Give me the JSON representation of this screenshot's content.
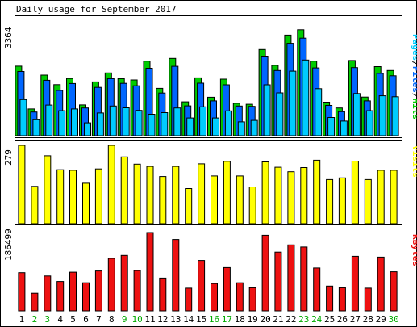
{
  "chart_data": {
    "type": "bar",
    "title": "Daily usage for September 2017",
    "categories": [
      "1",
      "2",
      "3",
      "4",
      "5",
      "6",
      "7",
      "8",
      "9",
      "10",
      "11",
      "12",
      "13",
      "14",
      "15",
      "16",
      "17",
      "18",
      "19",
      "20",
      "21",
      "22",
      "23",
      "24",
      "25",
      "26",
      "27",
      "28",
      "29",
      "30"
    ],
    "weekend_days": [
      "2",
      "3",
      "9",
      "10",
      "16",
      "17",
      "23",
      "24",
      "30"
    ],
    "panels": [
      {
        "id": "usage",
        "ymax_label": "3364",
        "ylim": [
          0,
          3364
        ],
        "legend": [
          "Pages",
          "/",
          "Files",
          "/",
          "Hits"
        ],
        "series": [
          {
            "name": "Hits",
            "color": "#00cc00",
            "values": [
              2145,
              825,
              1870,
              1575,
              1765,
              950,
              1660,
              1935,
              1760,
              1720,
              2300,
              1460,
              2385,
              1045,
              1785,
              1185,
              1745,
              1000,
              970,
              2660,
              2170,
              3105,
              3270,
              2300,
              1035,
              855,
              2320,
              1190,
              2130,
              2010
            ]
          },
          {
            "name": "Files",
            "color": "#0066ff",
            "values": [
              1980,
              730,
              1710,
              1395,
              1610,
              855,
              1490,
              1760,
              1615,
              1540,
              2080,
              1315,
              2140,
              920,
              1620,
              1075,
              1570,
              915,
              905,
              2455,
              2010,
              2850,
              3010,
              2090,
              935,
              740,
              2100,
              1075,
              1920,
              1850
            ]
          },
          {
            "name": "Pages",
            "color": "#00ccff",
            "values": [
              1115,
              490,
              945,
              770,
              825,
              395,
              700,
              915,
              860,
              780,
              660,
              710,
              855,
              545,
              890,
              545,
              765,
              425,
              470,
              1570,
              1320,
              1990,
              2335,
              1450,
              560,
              450,
              1300,
              770,
              1230,
              1200
            ]
          }
        ]
      },
      {
        "id": "visits",
        "ymax_label": "279",
        "ylim": [
          0,
          279
        ],
        "legend": [
          "Visits"
        ],
        "series": [
          {
            "name": "Visits",
            "color": "#ffff00",
            "values": [
              279,
              133,
              242,
              192,
              190,
              144,
              195,
              279,
              238,
              212,
              204,
              168,
              204,
              125,
              213,
              170,
              222,
              170,
              131,
              220,
              201,
              185,
              200,
              226,
              157,
              163,
              223,
              157,
              190,
              190
            ]
          }
        ]
      },
      {
        "id": "kbytes",
        "ymax_label": "186499",
        "ylim": [
          0,
          186499
        ],
        "legend": [
          "KBytes"
        ],
        "series": [
          {
            "name": "KBytes",
            "color": "#ee1111",
            "values": [
              91000,
              42000,
              83000,
              70000,
              92000,
              67000,
              95000,
              125000,
              132000,
              96000,
              186499,
              78000,
              170000,
              54000,
              120000,
              65000,
              103000,
              67000,
              55000,
              180000,
              140000,
              157000,
              152000,
              102000,
              59000,
              55000,
              130000,
              54000,
              128000,
              93000
            ]
          }
        ]
      }
    ],
    "colors": {
      "background": "#ffffff",
      "frame": "#000000",
      "weekday_label": "#000000",
      "weekend_label": "#00aa00",
      "usage_legend_pages": "#00ccff",
      "usage_legend_files": "#0066ff",
      "usage_legend_hits": "#00cc00",
      "visits_legend": "#ffff00",
      "kbytes_legend": "#ee1111"
    }
  }
}
